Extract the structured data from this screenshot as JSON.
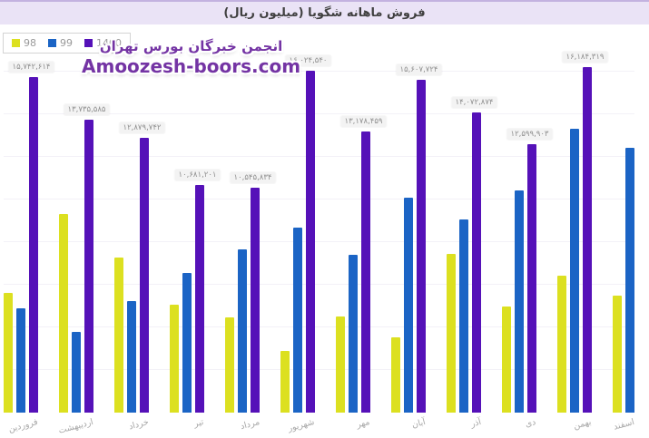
{
  "header": {
    "title": "فروش ماهانه شگویا (میلیون ریال)"
  },
  "legend": {
    "items": [
      {
        "label": "98",
        "color": "#dce020"
      },
      {
        "label": "99",
        "color": "#1b64c5"
      },
      {
        "label": "1400",
        "color": "#5511b8"
      }
    ]
  },
  "watermark": {
    "line1": "انجمن خبرگان بورس تهران",
    "line2": "Amoozesh-boors.com",
    "color": "#7434a4"
  },
  "chart_data": {
    "type": "bar",
    "title": "فروش ماهانه شگویا (میلیون ریال)",
    "xlabel": "",
    "ylabel": "",
    "ylim": [
      0,
      16700000
    ],
    "grid": "faint-horizontal",
    "grid_step": 2000000,
    "legend_position": "top-left",
    "categories": [
      "فروردین",
      "اردیبهشت",
      "خرداد",
      "تیر",
      "مرداد",
      "شهریور",
      "مهر",
      "آبان",
      "آذر",
      "دی",
      "بهمن",
      "اسفند"
    ],
    "series": [
      {
        "name": "98",
        "color": "#dce020",
        "values": [
          5620000,
          9320000,
          7280000,
          5060000,
          4470000,
          2890000,
          4510000,
          3530000,
          7450000,
          4980000,
          6430000,
          5490000
        ]
      },
      {
        "name": "99",
        "color": "#1b64c5",
        "values": [
          4890000,
          3790000,
          5230000,
          6550000,
          7660000,
          8680000,
          7400000,
          10080000,
          9060000,
          10420000,
          13310000,
          12420000
        ]
      },
      {
        "name": "1400",
        "color": "#5511b8",
        "values": [
          15742614,
          13735585,
          12879742,
          10681201,
          10545834,
          16024540,
          13178459,
          15607724,
          14072874,
          12599903,
          16184319,
          null
        ]
      }
    ],
    "bar_labels_1400": [
      "۱۵,۷۴۲,۶۱۴",
      "۱۳,۷۳۵,۵۸۵",
      "۱۲,۸۷۹,۷۴۲",
      "۱۰,۶۸۱,۲۰۱",
      "۱۰,۵۴۵,۸۳۴",
      "۱۶,۰۲۴,۵۴۰",
      "۱۳,۱۷۸,۴۵۹",
      "۱۵,۶۰۷,۷۲۴",
      "۱۴,۰۷۲,۸۷۴",
      "۱۲,۵۹۹,۹۰۳",
      "۱۶,۱۸۴,۳۱۹",
      null
    ]
  }
}
